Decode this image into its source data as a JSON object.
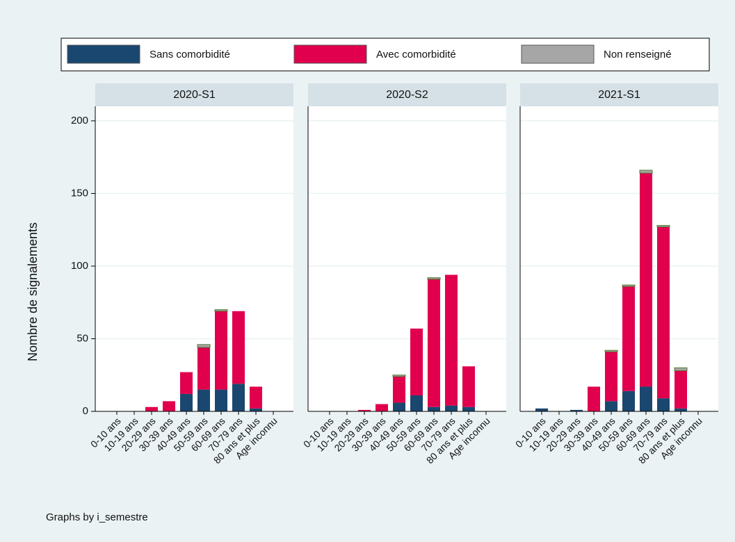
{
  "chart_data": {
    "type": "bar",
    "stacked": true,
    "y_label": "Nombre de signalements",
    "ylim": [
      0,
      210
    ],
    "yticks": [
      0,
      50,
      100,
      150,
      200
    ],
    "grid": true,
    "categories": [
      "0-10 ans",
      "10-19 ans",
      "20-29 ans",
      "30-39 ans",
      "40-49 ans",
      "50-59 ans",
      "60-69 ans",
      "70-79 ans",
      "80 ans et plus",
      "Age inconnu"
    ],
    "series": [
      {
        "name": "Sans comorbidité",
        "color": "#1a476f"
      },
      {
        "name": "Avec comorbidité",
        "color": "#e0004d"
      },
      {
        "name": "Non renseigné",
        "color": "#a6a6a6"
      }
    ],
    "facets": [
      {
        "title": "2020-S1",
        "series": [
          {
            "values": [
              0,
              0,
              0,
              0,
              12,
              15,
              15,
              19,
              2,
              0
            ]
          },
          {
            "values": [
              0,
              0,
              3,
              7,
              15,
              29,
              54,
              50,
              15,
              0
            ]
          },
          {
            "values": [
              0,
              0,
              0,
              0,
              0,
              2,
              1,
              0,
              0,
              0
            ]
          }
        ]
      },
      {
        "title": "2020-S2",
        "series": [
          {
            "values": [
              0,
              0,
              0,
              0,
              6,
              11,
              3,
              4,
              3,
              0
            ]
          },
          {
            "values": [
              0,
              0,
              1,
              5,
              18,
              46,
              88,
              90,
              28,
              0
            ]
          },
          {
            "values": [
              0,
              0,
              0,
              0,
              1,
              0,
              1,
              0,
              0,
              0
            ]
          }
        ]
      },
      {
        "title": "2021-S1",
        "series": [
          {
            "values": [
              2,
              0,
              1,
              0,
              7,
              14,
              17,
              9,
              2,
              0
            ]
          },
          {
            "values": [
              0,
              0,
              0,
              17,
              34,
              72,
              147,
              118,
              26,
              0
            ]
          },
          {
            "values": [
              0,
              0,
              0,
              0,
              1,
              1,
              2,
              1,
              2,
              0
            ]
          }
        ]
      }
    ]
  },
  "note": "Graphs by i_semestre"
}
